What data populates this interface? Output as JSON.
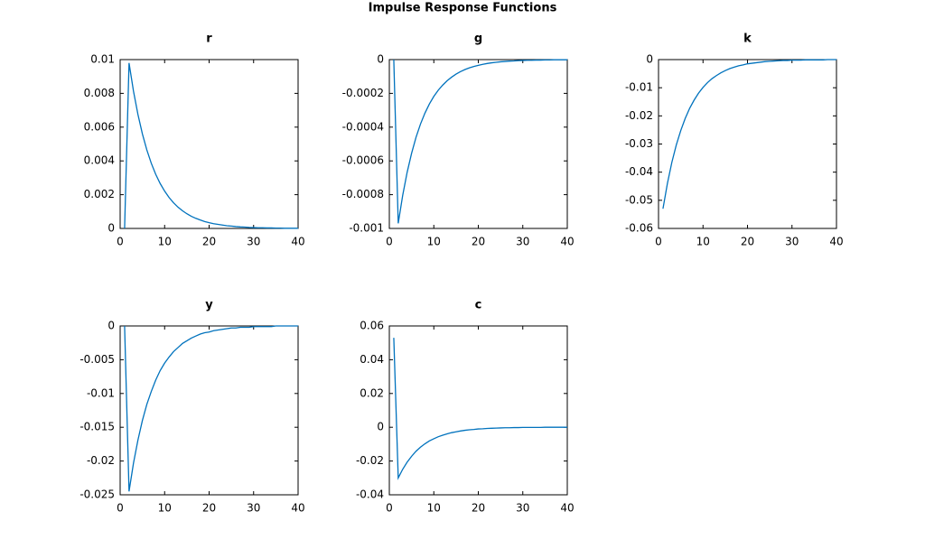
{
  "title": "Impulse Response Functions",
  "chart_data": [
    {
      "type": "line",
      "title": "r",
      "color": "#0072bd",
      "x": [
        1,
        2,
        3,
        4,
        5,
        6,
        7,
        8,
        9,
        10,
        11,
        12,
        13,
        14,
        15,
        16,
        17,
        18,
        19,
        20,
        21,
        22,
        23,
        24,
        25,
        26,
        27,
        28,
        29,
        30,
        31,
        32,
        33,
        34,
        35,
        36,
        37,
        38,
        39,
        40
      ],
      "values": [
        0,
        0.0098,
        0.00813,
        0.00675,
        0.0056,
        0.00465,
        0.00386,
        0.0032,
        0.00266,
        0.00221,
        0.00183,
        0.00152,
        0.00126,
        0.00105,
        0.00087,
        0.00072,
        0.0006,
        0.0005,
        0.00041,
        0.00034,
        0.00028,
        0.00024,
        0.0002,
        0.00016,
        0.00014,
        0.00011,
        9e-05,
        8e-05,
        6e-05,
        5e-05,
        4e-05,
        4e-05,
        3e-05,
        3e-05,
        2e-05,
        2e-05,
        1e-05,
        1e-05,
        1e-05,
        1e-05
      ],
      "xlim": [
        0,
        40
      ],
      "xticks": [
        0,
        10,
        20,
        30,
        40
      ],
      "ylim": [
        0,
        0.01
      ],
      "yticks": [
        0,
        0.002,
        0.004,
        0.006,
        0.008,
        0.01
      ]
    },
    {
      "type": "line",
      "title": "g",
      "color": "#0072bd",
      "x": [
        1,
        2,
        3,
        4,
        5,
        6,
        7,
        8,
        9,
        10,
        11,
        12,
        13,
        14,
        15,
        16,
        17,
        18,
        19,
        20,
        21,
        22,
        23,
        24,
        25,
        26,
        27,
        28,
        29,
        30,
        31,
        32,
        33,
        34,
        35,
        36,
        37,
        38,
        39,
        40
      ],
      "values": [
        0,
        -0.00097,
        -0.000805,
        -0.000668,
        -0.000555,
        -0.00046,
        -0.000382,
        -0.000317,
        -0.000263,
        -0.000218,
        -0.000181,
        -0.000151,
        -0.000125,
        -0.000104,
        -8.6e-05,
        -7.1e-05,
        -5.9e-05,
        -4.9e-05,
        -4.1e-05,
        -3.4e-05,
        -2.8e-05,
        -2.3e-05,
        -1.9e-05,
        -1.6e-05,
        -1.3e-05,
        -1.1e-05,
        -9e-06,
        -8e-06,
        -6e-06,
        -5e-06,
        -4e-06,
        -4e-06,
        -3e-06,
        -3e-06,
        -2e-06,
        -2e-06,
        -1e-06,
        -1e-06,
        -1e-06,
        -1e-06
      ],
      "xlim": [
        0,
        40
      ],
      "xticks": [
        0,
        10,
        20,
        30,
        40
      ],
      "ylim": [
        -0.001,
        0
      ],
      "yticks": [
        -0.001,
        -0.0008,
        -0.0006,
        -0.0004,
        -0.0002,
        0
      ]
    },
    {
      "type": "line",
      "title": "k",
      "color": "#0072bd",
      "x": [
        1,
        2,
        3,
        4,
        5,
        6,
        7,
        8,
        9,
        10,
        11,
        12,
        13,
        14,
        15,
        16,
        17,
        18,
        19,
        20,
        21,
        22,
        23,
        24,
        25,
        26,
        27,
        28,
        29,
        30,
        31,
        32,
        33,
        34,
        35,
        36,
        37,
        38,
        39,
        40
      ],
      "values": [
        -0.053,
        -0.044,
        -0.0365,
        -0.0303,
        -0.0252,
        -0.0209,
        -0.0173,
        -0.0144,
        -0.0119,
        -0.0099,
        -0.0082,
        -0.0068,
        -0.0057,
        -0.0047,
        -0.0039,
        -0.0032,
        -0.0027,
        -0.0022,
        -0.0019,
        -0.0015,
        -0.0013,
        -0.0011,
        -0.0009,
        -0.0007,
        -0.0006,
        -0.0005,
        -0.0004,
        -0.0003,
        -0.0003,
        -0.0002,
        -0.0002,
        -0.0002,
        -0.0001,
        -0.0001,
        -0.0001,
        -0.0001,
        -0.0001,
        0,
        0,
        0
      ],
      "xlim": [
        0,
        40
      ],
      "xticks": [
        0,
        10,
        20,
        30,
        40
      ],
      "ylim": [
        -0.06,
        0
      ],
      "yticks": [
        -0.06,
        -0.05,
        -0.04,
        -0.03,
        -0.02,
        -0.01,
        0
      ]
    },
    {
      "type": "line",
      "title": "y",
      "color": "#0072bd",
      "x": [
        1,
        2,
        3,
        4,
        5,
        6,
        7,
        8,
        9,
        10,
        11,
        12,
        13,
        14,
        15,
        16,
        17,
        18,
        19,
        20,
        21,
        22,
        23,
        24,
        25,
        26,
        27,
        28,
        29,
        30,
        31,
        32,
        33,
        34,
        35,
        36,
        37,
        38,
        39,
        40
      ],
      "values": [
        0,
        -0.0245,
        -0.0203,
        -0.0169,
        -0.014,
        -0.0116,
        -0.0097,
        -0.008,
        -0.0066,
        -0.0055,
        -0.0046,
        -0.0038,
        -0.0032,
        -0.0026,
        -0.0022,
        -0.0018,
        -0.0015,
        -0.0012,
        -0.001,
        -0.0009,
        -0.0007,
        -0.0006,
        -0.0005,
        -0.0004,
        -0.0003,
        -0.0003,
        -0.0002,
        -0.0002,
        -0.0002,
        -0.0001,
        -0.0001,
        -0.0001,
        -0.0001,
        -0.0001,
        0,
        0,
        0,
        0,
        0,
        0
      ],
      "xlim": [
        0,
        40
      ],
      "xticks": [
        0,
        10,
        20,
        30,
        40
      ],
      "ylim": [
        -0.025,
        0
      ],
      "yticks": [
        -0.025,
        -0.02,
        -0.015,
        -0.01,
        -0.005,
        0
      ]
    },
    {
      "type": "line",
      "title": "c",
      "color": "#0072bd",
      "x": [
        1,
        2,
        3,
        4,
        5,
        6,
        7,
        8,
        9,
        10,
        11,
        12,
        13,
        14,
        15,
        16,
        17,
        18,
        19,
        20,
        21,
        22,
        23,
        24,
        25,
        26,
        27,
        28,
        29,
        30,
        31,
        32,
        33,
        34,
        35,
        36,
        37,
        38,
        39,
        40
      ],
      "values": [
        0.053,
        -0.03,
        -0.0249,
        -0.0207,
        -0.0172,
        -0.0142,
        -0.0118,
        -0.0098,
        -0.0081,
        -0.0068,
        -0.0056,
        -0.0047,
        -0.0039,
        -0.0032,
        -0.0027,
        -0.0022,
        -0.0018,
        -0.0015,
        -0.0013,
        -0.001,
        -0.0009,
        -0.0007,
        -0.0006,
        -0.0005,
        -0.0004,
        -0.0003,
        -0.0003,
        -0.0002,
        -0.0002,
        -0.0001,
        -0.0001,
        -0.0001,
        -0.0001,
        -0.0001,
        0,
        0,
        0,
        0,
        0,
        0
      ],
      "xlim": [
        0,
        40
      ],
      "xticks": [
        0,
        10,
        20,
        30,
        40
      ],
      "ylim": [
        -0.04,
        0.06
      ],
      "yticks": [
        -0.04,
        -0.02,
        0,
        0.02,
        0.04,
        0.06
      ]
    }
  ]
}
